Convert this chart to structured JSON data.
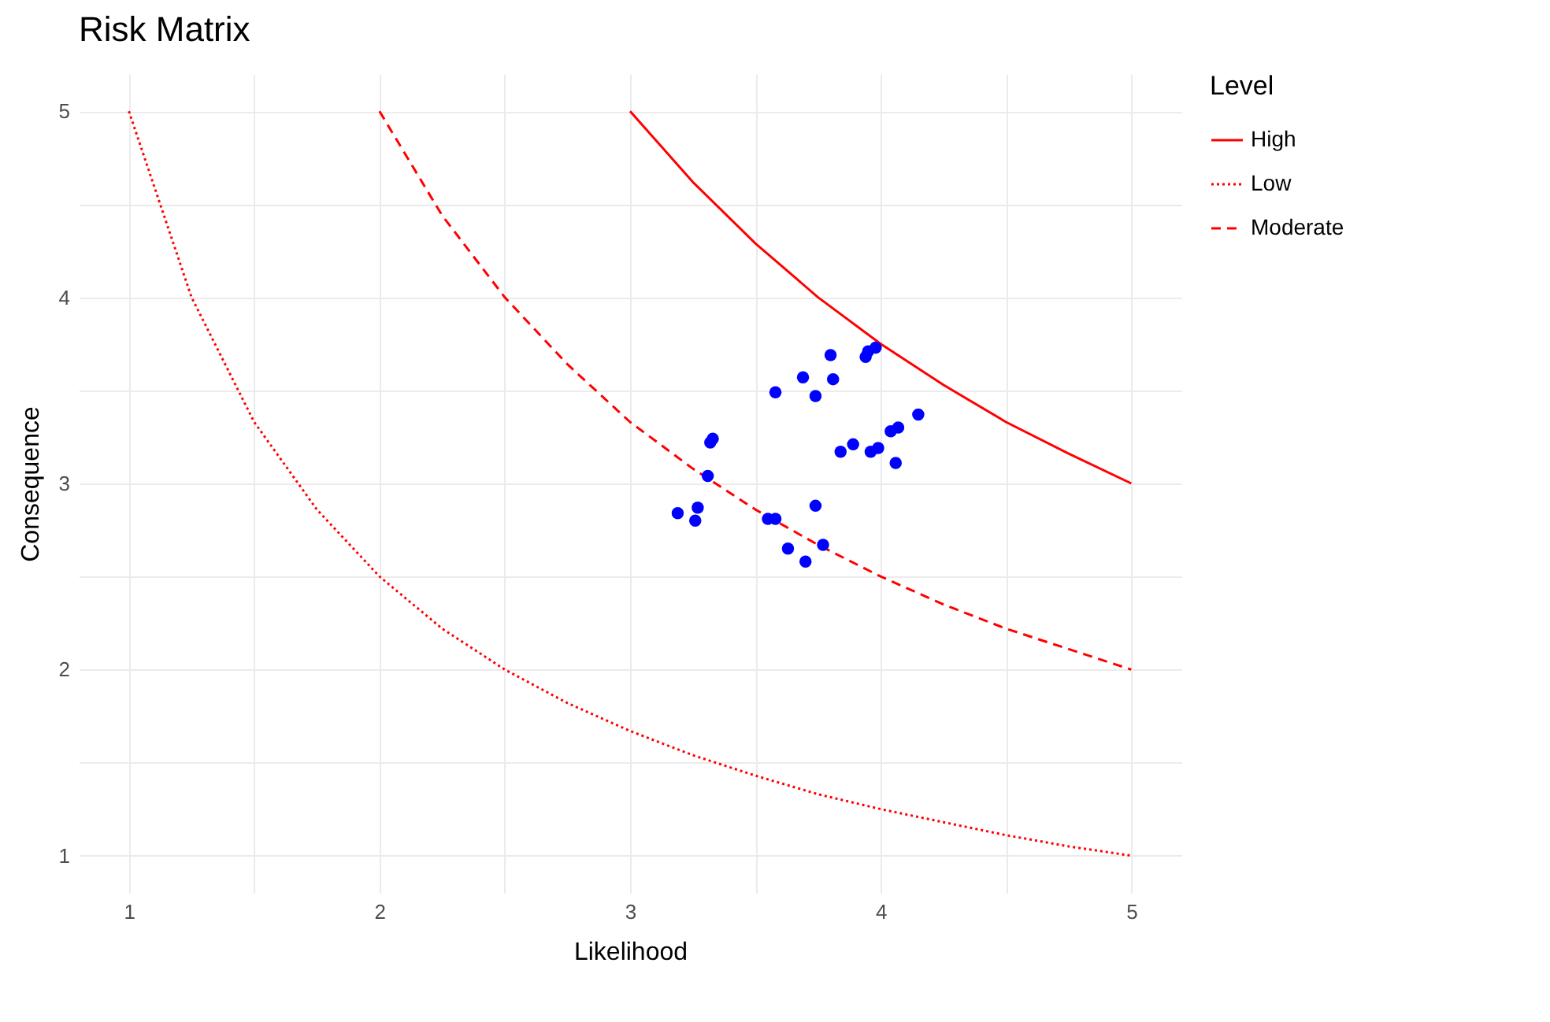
{
  "chart_data": {
    "type": "scatter",
    "title": "Risk Matrix",
    "xlabel": "Likelihood",
    "ylabel": "Consequence",
    "legend_title": "Level",
    "legend": "right",
    "grid": true,
    "xlim": [
      0.8,
      5.2
    ],
    "ylim": [
      0.8,
      5.2
    ],
    "xticks": [
      1,
      {
        "value": 1.5,
        "label": null
      },
      2,
      {
        "value": 2.5,
        "label": null
      },
      3,
      {
        "value": 3.5,
        "label": null
      },
      4,
      {
        "value": 4.5,
        "label": null
      },
      5
    ],
    "yticks": [
      1,
      {
        "value": 1.5,
        "label": null
      },
      2,
      {
        "value": 2.5,
        "label": null
      },
      3,
      {
        "value": 3.5,
        "label": null
      },
      4,
      {
        "value": 4.5,
        "label": null
      },
      5
    ],
    "series": [
      {
        "type": "line",
        "name": "High",
        "color": "#ff0000",
        "line_style": "solid",
        "x": [
          3,
          3.25,
          3.5,
          3.75,
          4,
          4.25,
          4.5,
          4.75,
          5
        ],
        "values": [
          5,
          4.62,
          4.29,
          4,
          3.75,
          3.53,
          3.33,
          3.16,
          3
        ]
      },
      {
        "type": "line",
        "name": "Low",
        "color": "#ff0000",
        "line_style": "dotted",
        "x": [
          1,
          1.25,
          1.5,
          1.75,
          2,
          2.25,
          2.5,
          2.75,
          3,
          3.25,
          3.5,
          3.75,
          4,
          4.25,
          4.5,
          4.75,
          5
        ],
        "values": [
          5,
          4,
          3.33,
          2.86,
          2.5,
          2.22,
          2,
          1.82,
          1.67,
          1.54,
          1.43,
          1.33,
          1.25,
          1.18,
          1.11,
          1.05,
          1
        ]
      },
      {
        "type": "line",
        "name": "Moderate",
        "color": "#ff0000",
        "line_style": "dashed",
        "x": [
          2,
          2.25,
          2.5,
          2.75,
          3,
          3.25,
          3.5,
          3.75,
          4,
          4.25,
          4.5,
          4.75,
          5
        ],
        "values": [
          5,
          4.44,
          4,
          3.64,
          3.33,
          3.08,
          2.86,
          2.67,
          2.5,
          2.35,
          2.22,
          2.11,
          2
        ]
      },
      {
        "color": "#0000ff",
        "marker": "circle",
        "x": [
          3.8,
          3.94,
          3.95,
          3.98,
          3.69,
          3.81,
          3.58,
          3.74,
          4.15,
          4.07,
          4.04,
          3.89,
          3.84,
          3.99,
          3.96,
          4.06,
          3.33,
          3.32,
          3.31,
          3.19,
          3.27,
          3.26,
          3.74,
          3.55,
          3.58,
          3.63,
          3.77,
          3.7
        ],
        "values": [
          3.69,
          3.68,
          3.71,
          3.73,
          3.57,
          3.56,
          3.49,
          3.47,
          3.37,
          3.3,
          3.28,
          3.21,
          3.17,
          3.19,
          3.17,
          3.11,
          3.24,
          3.22,
          3.04,
          2.84,
          2.87,
          2.8,
          2.88,
          2.81,
          2.81,
          2.65,
          2.67,
          2.58
        ]
      }
    ]
  }
}
